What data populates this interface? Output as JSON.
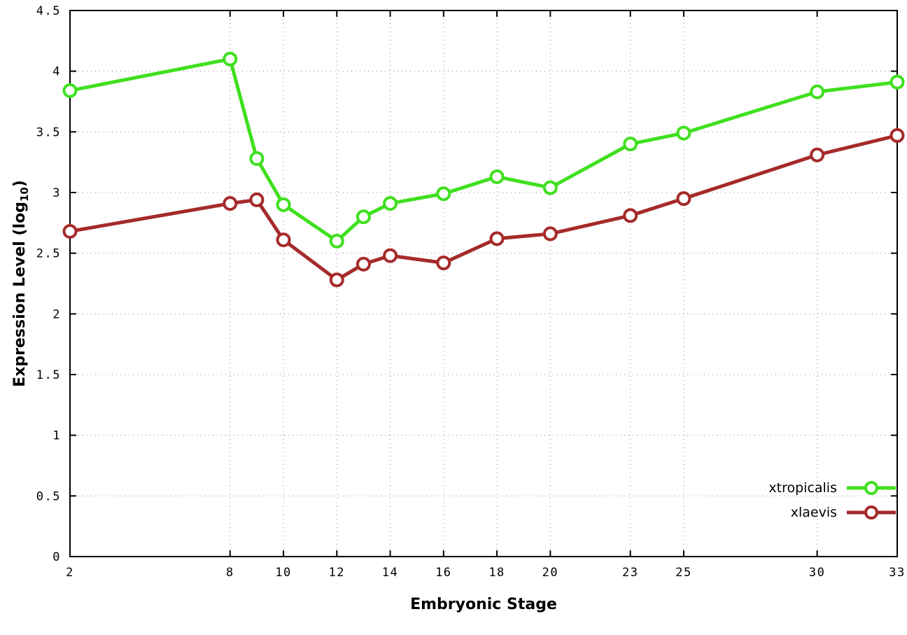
{
  "chart_data": {
    "type": "line",
    "title": "",
    "xlabel": "Embryonic Stage",
    "ylabel": "Expression Level (log10)",
    "xlim": [
      2,
      33
    ],
    "ylim": [
      0,
      4.5
    ],
    "grid": true,
    "legend_position": "bottom-right",
    "x_ticks": [
      2,
      8,
      10,
      12,
      14,
      16,
      18,
      20,
      23,
      25,
      30,
      33
    ],
    "y_ticks": [
      0,
      0.5,
      1,
      1.5,
      2,
      2.5,
      3,
      3.5,
      4,
      4.5
    ],
    "x": [
      2,
      8,
      9,
      10,
      12,
      13,
      14,
      16,
      18,
      20,
      23,
      25,
      30,
      33
    ],
    "series": [
      {
        "name": "xtropicalis",
        "color": "#3fe01e",
        "values": [
          3.84,
          4.1,
          3.28,
          2.9,
          2.6,
          2.8,
          2.91,
          2.99,
          3.13,
          3.04,
          3.4,
          3.49,
          3.83,
          3.91
        ]
      },
      {
        "name": "xlaevis",
        "color": "#a52a2a",
        "values": [
          2.68,
          2.91,
          2.94,
          2.61,
          2.28,
          2.41,
          2.48,
          2.42,
          2.62,
          2.66,
          2.81,
          2.95,
          3.31,
          3.47
        ]
      }
    ]
  },
  "axes": {
    "x_label": "Embryonic Stage",
    "y_label_prefix": "Expression Level (log",
    "y_label_sub": "10",
    "y_label_suffix": ")"
  }
}
